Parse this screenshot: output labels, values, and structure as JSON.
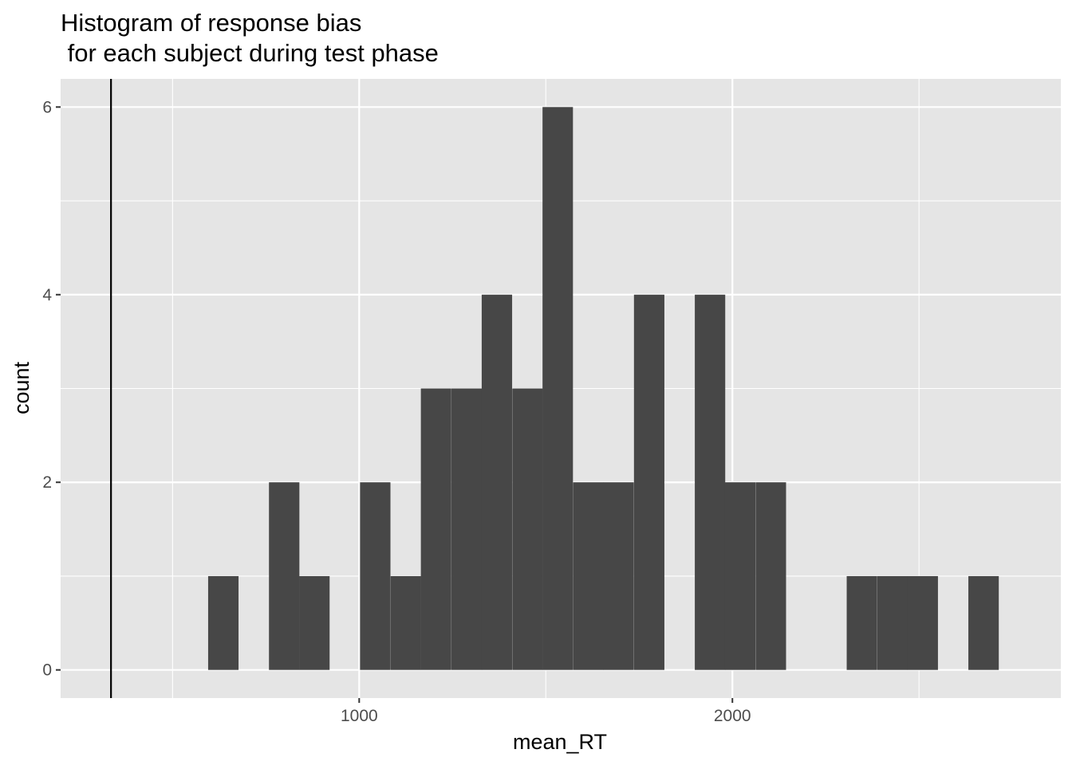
{
  "chart_data": {
    "type": "bar",
    "title_lines": [
      "Histogram of response bias",
      " for each subject during test phase"
    ],
    "xlabel": "mean_RT",
    "ylabel": "count",
    "xlim": [
      200,
      2880
    ],
    "ylim": [
      -0.3,
      6.3
    ],
    "x_ticks": [
      1000,
      2000
    ],
    "x_minor_ticks": [
      500,
      1500,
      2500
    ],
    "y_ticks": [
      0,
      2,
      4,
      6
    ],
    "y_minor_ticks": [
      1,
      3,
      5
    ],
    "vline_x": 335,
    "bin_width": 81.5,
    "bins": [
      {
        "x": 636,
        "count": 1
      },
      {
        "x": 799,
        "count": 2
      },
      {
        "x": 880,
        "count": 1
      },
      {
        "x": 1043,
        "count": 2
      },
      {
        "x": 1125,
        "count": 1
      },
      {
        "x": 1206,
        "count": 3
      },
      {
        "x": 1288,
        "count": 3
      },
      {
        "x": 1369,
        "count": 4
      },
      {
        "x": 1451,
        "count": 3
      },
      {
        "x": 1532,
        "count": 6
      },
      {
        "x": 1614,
        "count": 2
      },
      {
        "x": 1695,
        "count": 2
      },
      {
        "x": 1777,
        "count": 4
      },
      {
        "x": 1940,
        "count": 4
      },
      {
        "x": 2021,
        "count": 2
      },
      {
        "x": 2103,
        "count": 2
      },
      {
        "x": 2347,
        "count": 1
      },
      {
        "x": 2429,
        "count": 1
      },
      {
        "x": 2510,
        "count": 1
      },
      {
        "x": 2673,
        "count": 1
      }
    ],
    "colors": {
      "panel": "#e5e5e5",
      "grid": "#ffffff",
      "bar": "#474747",
      "vline": "#000000",
      "tick": "#333333"
    }
  }
}
